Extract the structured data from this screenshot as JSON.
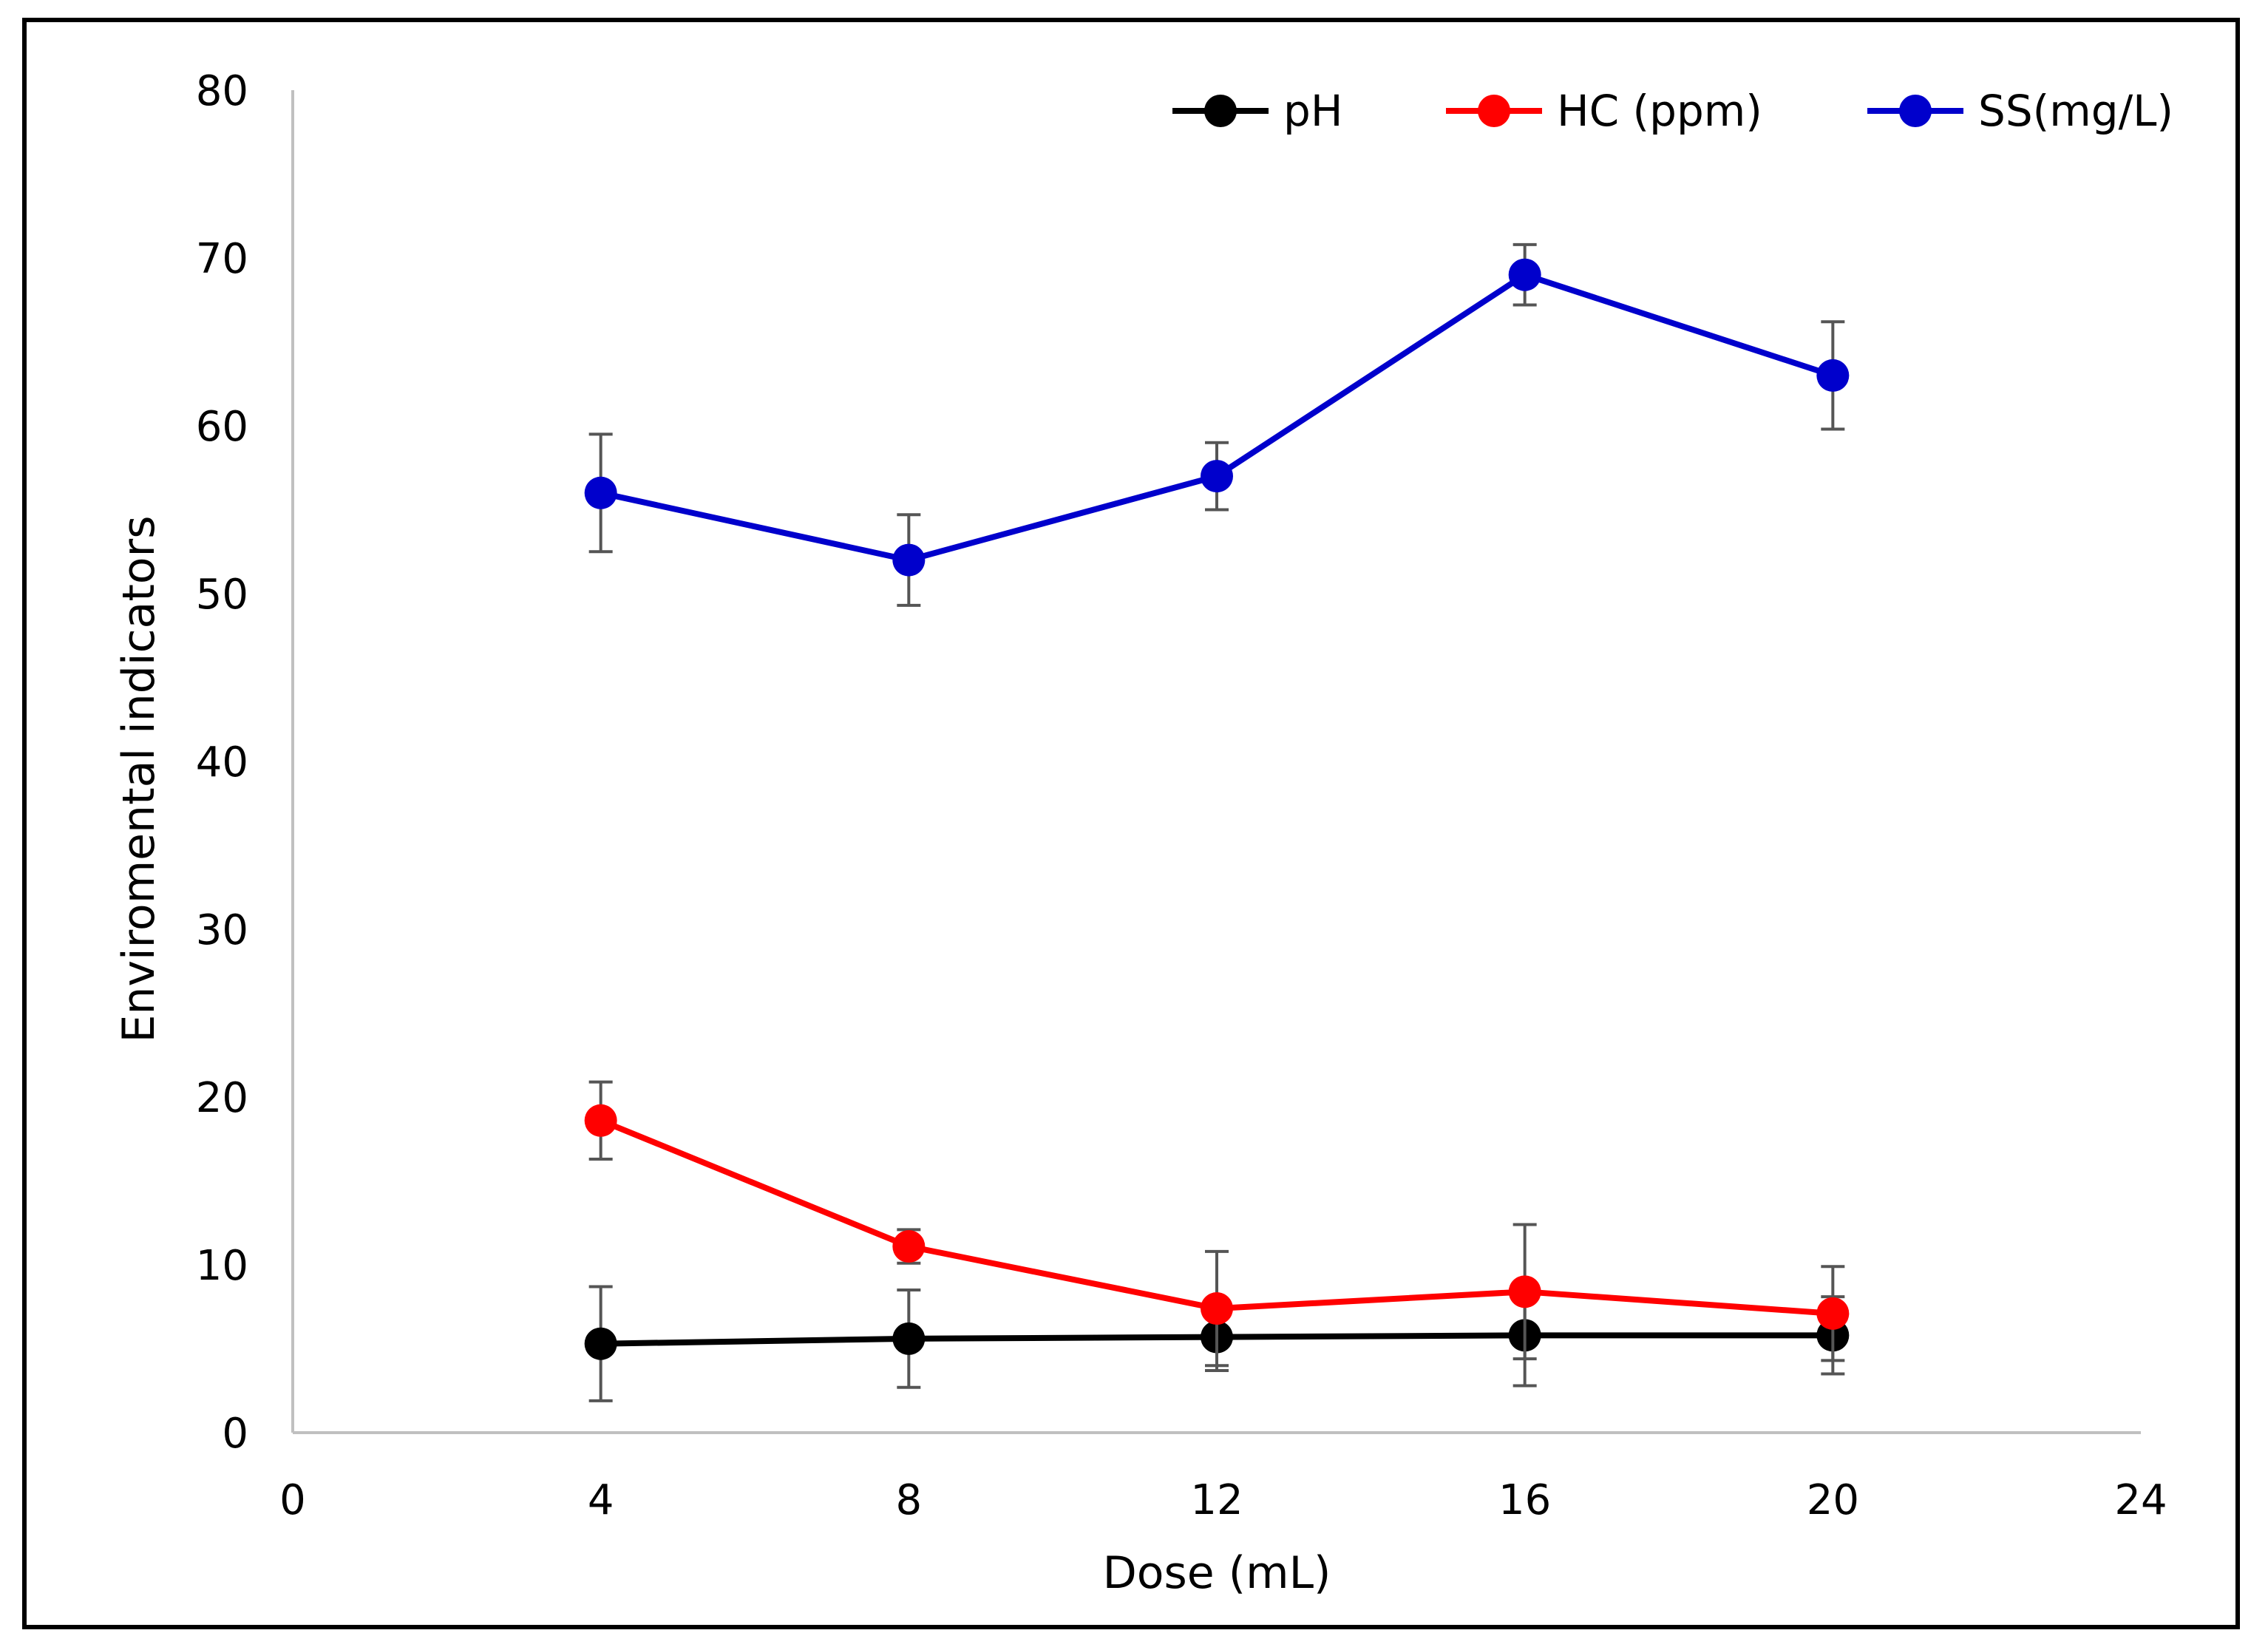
{
  "chart_data": {
    "type": "line",
    "title": "",
    "xlabel": "Dose (mL)",
    "ylabel": "Enviromental indicators",
    "xlim": [
      0,
      24
    ],
    "ylim": [
      0,
      80
    ],
    "xticks": [
      0,
      4,
      8,
      12,
      16,
      20,
      24
    ],
    "yticks": [
      0,
      10,
      20,
      30,
      40,
      50,
      60,
      70,
      80
    ],
    "grid": false,
    "legend_position": "top-right",
    "x": [
      4,
      8,
      12,
      16,
      20
    ],
    "series": [
      {
        "name": "pH",
        "color": "#000000",
        "values": [
          5.3,
          5.6,
          5.7,
          5.8,
          5.8
        ],
        "errors": [
          3.4,
          2.9,
          2.0,
          3.0,
          2.3
        ]
      },
      {
        "name": "HC (ppm)",
        "color": "#ff0000",
        "values": [
          18.6,
          11.1,
          7.4,
          8.4,
          7.1
        ],
        "errors": [
          2.3,
          1.0,
          3.4,
          4.0,
          2.8
        ]
      },
      {
        "name": "SS(mg/L)",
        "color": "#0000cc",
        "values": [
          56.0,
          52.0,
          57.0,
          69.0,
          63.0
        ],
        "errors": [
          3.5,
          2.7,
          2.0,
          1.8,
          3.2
        ]
      }
    ]
  }
}
